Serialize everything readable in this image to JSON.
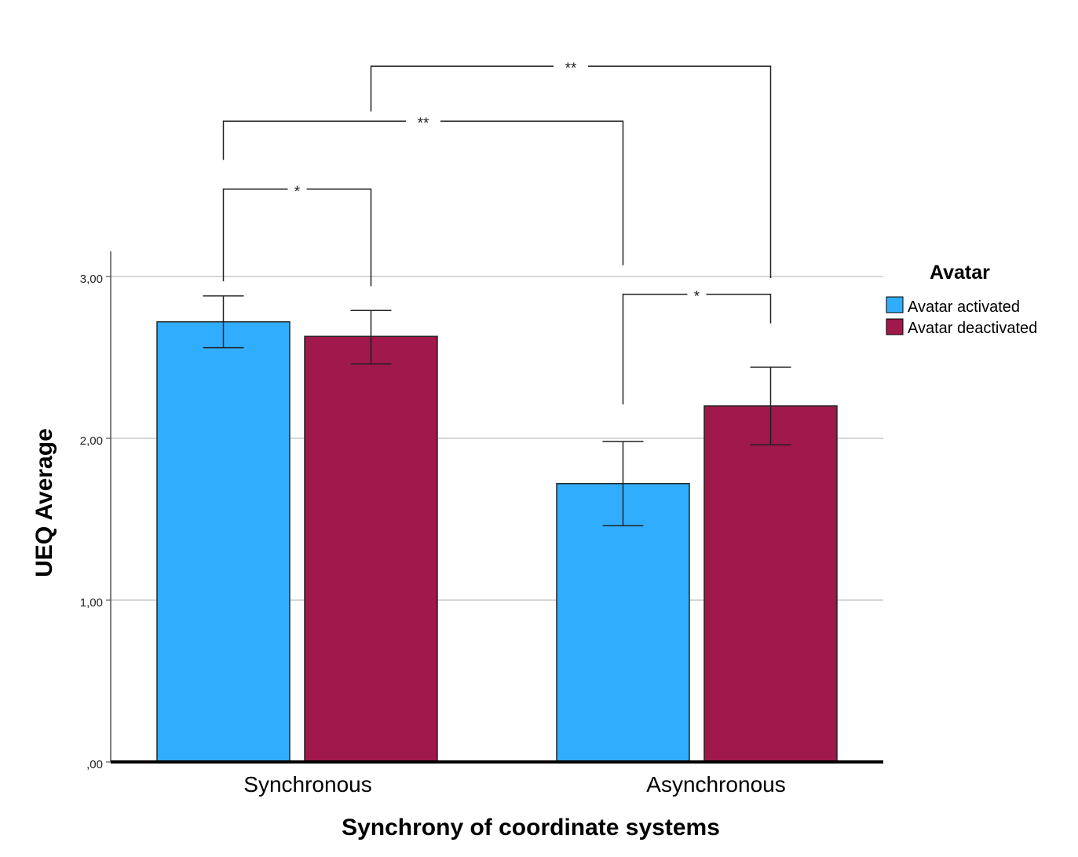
{
  "chart_data": {
    "type": "bar",
    "title": "",
    "xlabel": "Synchrony of coordinate systems",
    "ylabel": "UEQ Average",
    "categories": [
      "Synchronous",
      "Asynchronous"
    ],
    "ylim": [
      0,
      3
    ],
    "yticks": [
      0,
      1,
      2,
      3
    ],
    "ytick_labels": [
      ",00",
      "1,00",
      "2,00",
      "3,00"
    ],
    "grid": true,
    "legend": {
      "title": "Avatar",
      "position": "right"
    },
    "series": [
      {
        "name": "Avatar activated",
        "color": "#31ADFD",
        "values": [
          2.72,
          1.72
        ],
        "err_low": [
          2.56,
          1.46
        ],
        "err_high": [
          2.88,
          1.98
        ]
      },
      {
        "name": "Avatar deactivated",
        "color": "#A0184C",
        "values": [
          2.63,
          2.2
        ],
        "err_low": [
          2.46,
          1.96
        ],
        "err_high": [
          2.79,
          2.44
        ]
      }
    ],
    "annotations": [
      {
        "label": "*",
        "from": [
          0,
          0
        ],
        "to": [
          0,
          1
        ],
        "level": 3.54
      },
      {
        "label": "**",
        "from": [
          0,
          0
        ],
        "to": [
          1,
          0
        ],
        "level": 3.96
      },
      {
        "label": "**",
        "from": [
          0,
          1
        ],
        "to": [
          1,
          1
        ],
        "level": 4.3
      },
      {
        "label": "*",
        "from": [
          1,
          0
        ],
        "to": [
          1,
          1
        ],
        "level": 2.89
      }
    ]
  }
}
